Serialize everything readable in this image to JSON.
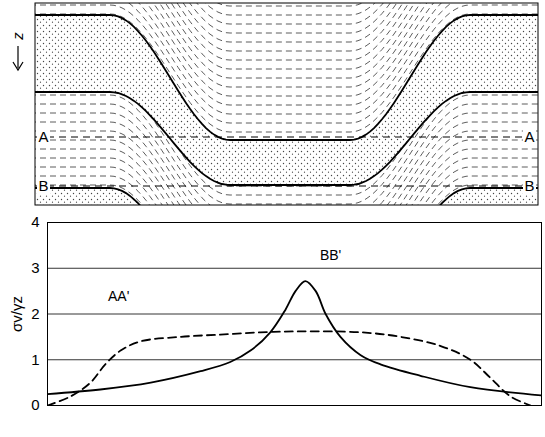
{
  "diagram": {
    "depth_label": "z",
    "sections": [
      {
        "label": "A"
      },
      {
        "label": "B"
      }
    ]
  },
  "chart_data": {
    "type": "line",
    "ylabel": "σv/γz",
    "xlim": [
      0,
      100
    ],
    "ylim": [
      0,
      4
    ],
    "yticks": [
      0,
      1,
      2,
      3,
      4
    ],
    "grid": true,
    "tick_labels": "y",
    "series": [
      {
        "name": "BB'",
        "color": "#000000",
        "line_style": "solid",
        "x": [
          0,
          10.7,
          20.9,
          31.0,
          37.0,
          41.1,
          45.1,
          48.2,
          50.2,
          52.2,
          54.3,
          56.3,
          59.3,
          63.4,
          67.4,
          75.5,
          85.6,
          100
        ],
        "values": [
          0.25,
          0.35,
          0.5,
          0.75,
          0.95,
          1.2,
          1.6,
          2.1,
          2.5,
          2.72,
          2.5,
          2.0,
          1.5,
          1.1,
          0.9,
          0.65,
          0.4,
          0.22
        ]
      },
      {
        "name": "AA'",
        "color": "#000000",
        "line_style": "dashed",
        "x": [
          0,
          4.7,
          8.7,
          11.7,
          14.8,
          18.8,
          26.9,
          35.0,
          43.1,
          51.2,
          63.4,
          71.5,
          79.6,
          85.6,
          89.7,
          93.7,
          97.8
        ],
        "values": [
          0.0,
          0.2,
          0.5,
          0.9,
          1.2,
          1.4,
          1.5,
          1.55,
          1.6,
          1.62,
          1.6,
          1.5,
          1.3,
          1.0,
          0.6,
          0.2,
          0.0
        ]
      }
    ],
    "annotations": [
      {
        "text": "BB'",
        "x": 57.3,
        "y": 3.28
      },
      {
        "text": "AA'",
        "x": 14.4,
        "y": 2.38
      }
    ]
  }
}
